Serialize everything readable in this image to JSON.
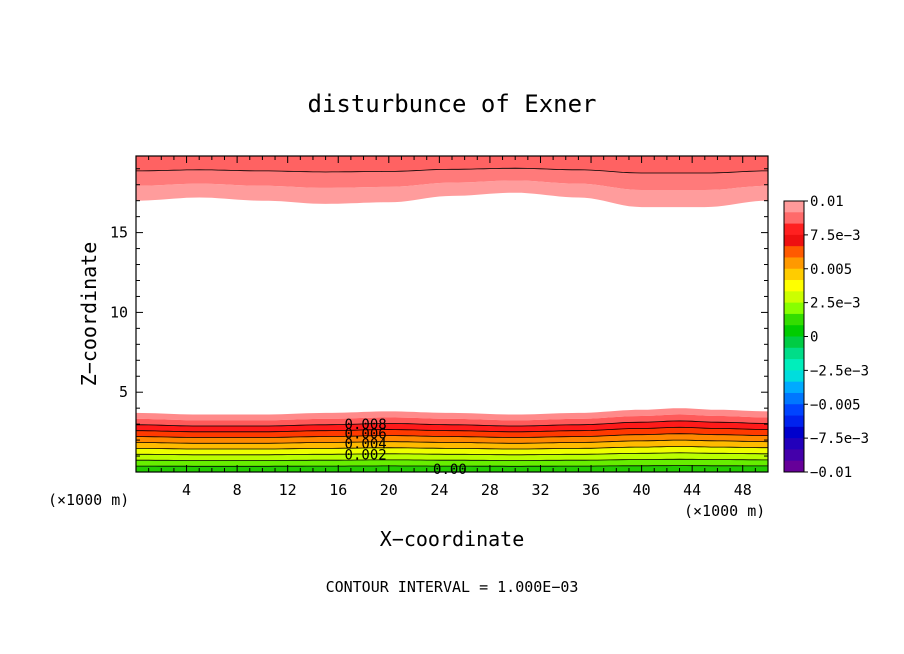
{
  "chart_data": {
    "type": "contour",
    "title": "disturbunce of Exner",
    "xlabel": "X−coordinate",
    "ylabel": "Z−coordinate",
    "x_unit_left": "(×1000 m)",
    "x_unit_right": "(×1000 m)",
    "footer": "CONTOUR INTERVAL = 1.000E−03",
    "xlim": [
      0,
      50
    ],
    "ylim": [
      0,
      19.8
    ],
    "x_ticks": [
      4,
      8,
      12,
      16,
      20,
      24,
      28,
      32,
      36,
      40,
      44,
      48
    ],
    "x_tick_labels": [
      "4",
      "8",
      "12",
      "16",
      "20",
      "24",
      "28",
      "32",
      "36",
      "40",
      "44",
      "48"
    ],
    "y_ticks": [
      5,
      10,
      15
    ],
    "y_tick_labels": [
      "5",
      "10",
      "15"
    ],
    "colorbar": {
      "labels": [
        "0.01",
        "7.5e−3",
        "0.005",
        "2.5e−3",
        "0",
        "−2.5e−3",
        "−0.005",
        "−7.5e−3",
        "−0.01"
      ],
      "colors": [
        "#ff9a9a",
        "#ff6a6a",
        "#ff2020",
        "#ee1010",
        "#ff5a00",
        "#ff9900",
        "#ffcc00",
        "#ffff00",
        "#ccff00",
        "#88ff00",
        "#33dd00",
        "#00cc00",
        "#00cc44",
        "#00dd88",
        "#00eebb",
        "#00dddd",
        "#00aaff",
        "#0077ff",
        "#0044ff",
        "#0022ee",
        "#0000cc",
        "#2200bb",
        "#4400aa",
        "#660099"
      ]
    },
    "contour_labels": [
      {
        "text": "0.008",
        "x": 16.5,
        "z": 3.0
      },
      {
        "text": "0.006",
        "x": 16.5,
        "z": 2.4
      },
      {
        "text": "0.004",
        "x": 16.5,
        "z": 1.8
      },
      {
        "text": "0.002",
        "x": 16.5,
        "z": 1.1
      },
      {
        "text": "0.00",
        "x": 23.5,
        "z": 0.2
      }
    ],
    "lower_layer": {
      "top_profile": [
        [
          0,
          3.7
        ],
        [
          5,
          3.6
        ],
        [
          10,
          3.6
        ],
        [
          15,
          3.7
        ],
        [
          20,
          3.8
        ],
        [
          25,
          3.7
        ],
        [
          30,
          3.6
        ],
        [
          35,
          3.7
        ],
        [
          40,
          3.9
        ],
        [
          43,
          4.0
        ],
        [
          46,
          3.9
        ],
        [
          50,
          3.8
        ]
      ],
      "band_colors": [
        "#ff8a8a",
        "#ff5a5a",
        "#ff1a1a",
        "#ff3a00",
        "#ff8800",
        "#ffbb00",
        "#eeff00",
        "#bbff00",
        "#66ee00",
        "#22cc00"
      ]
    },
    "upper_layer": {
      "bottom_profile": [
        [
          0,
          17.0
        ],
        [
          5,
          17.2
        ],
        [
          10,
          17.0
        ],
        [
          15,
          16.8
        ],
        [
          20,
          16.9
        ],
        [
          25,
          17.3
        ],
        [
          30,
          17.5
        ],
        [
          35,
          17.2
        ],
        [
          40,
          16.6
        ],
        [
          45,
          16.6
        ],
        [
          50,
          17.0
        ]
      ],
      "band_colors": [
        "#ff9c9c",
        "#ff7a7a",
        "#ff6262"
      ]
    }
  }
}
